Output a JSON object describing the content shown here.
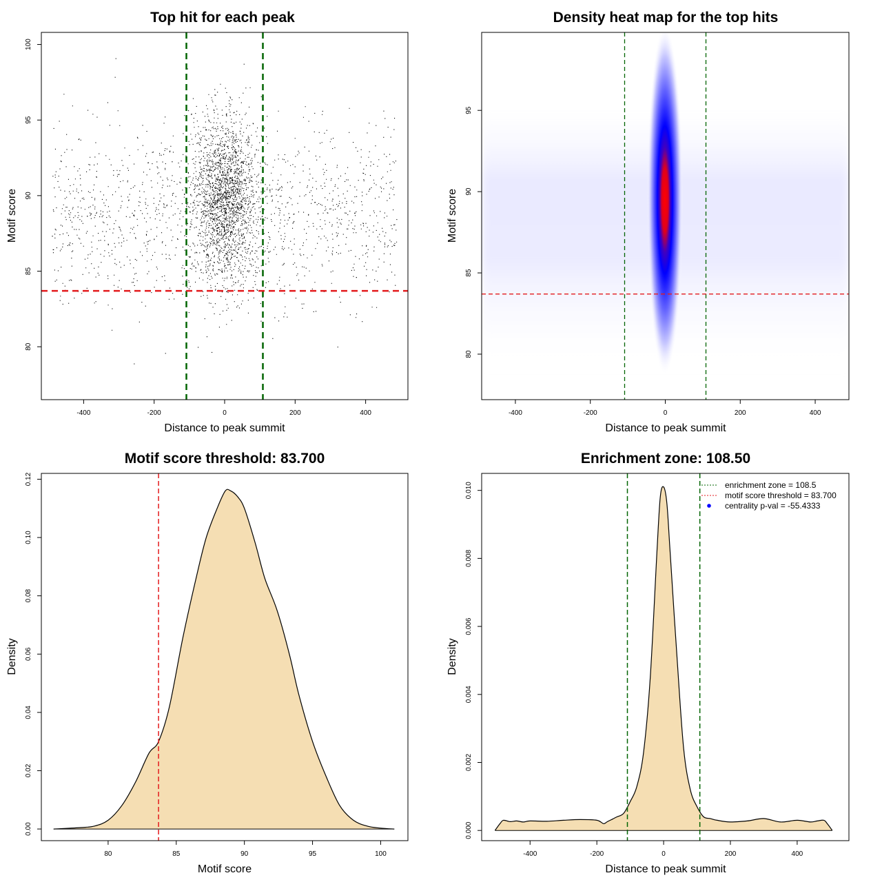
{
  "chart_data": [
    {
      "type": "scatter",
      "title": "Top hit for each peak",
      "xlabel": "Distance to peak summit",
      "ylabel": "Motif score",
      "xlim": [
        -520,
        520
      ],
      "ylim": [
        76.5,
        100.8
      ],
      "xticks": [
        -400,
        -200,
        0,
        200,
        400
      ],
      "yticks": [
        80,
        85,
        90,
        95,
        100
      ],
      "vlines": [
        -108.5,
        108.5
      ],
      "hline": 83.7,
      "colors": {
        "points": "#000000",
        "vline": "#006400",
        "hline": "#e31a1c"
      },
      "points_description_n": 16000
    },
    {
      "type": "heatmap",
      "title": "Density heat map for the top hits",
      "xlabel": "Distance to peak summit",
      "ylabel": "Motif score",
      "xlim": [
        -490,
        490
      ],
      "ylim": [
        77.2,
        99.8
      ],
      "xticks": [
        -400,
        -200,
        0,
        200,
        400
      ],
      "yticks": [
        80,
        85,
        90,
        95
      ],
      "vlines": [
        -108.5,
        108.5
      ],
      "hline": 83.7,
      "colors": {
        "low": "#ffffff",
        "mid": "#0000ff",
        "high": "#ff0000",
        "vline": "#006400",
        "hline": "#e31a1c"
      }
    },
    {
      "type": "area",
      "title": "Motif score threshold: 83.700",
      "xlabel": "Motif score",
      "ylabel": "Density",
      "xlim": [
        75.1,
        102.0
      ],
      "ylim": [
        -0.004,
        0.122
      ],
      "xticks": [
        80,
        85,
        90,
        95,
        100
      ],
      "yticks": [
        0.0,
        0.02,
        0.04,
        0.06,
        0.08,
        0.1,
        0.12
      ],
      "ytick_labels": [
        "0.00",
        "0.02",
        "0.04",
        "0.06",
        "0.08",
        "0.10",
        "0.12"
      ],
      "vline": 83.7,
      "x": [
        76.0,
        78.0,
        79.0,
        80.0,
        81.0,
        82.0,
        83.0,
        83.7,
        84.5,
        85.5,
        86.5,
        87.2,
        88.0,
        88.6,
        89.0,
        89.5,
        90.0,
        90.8,
        91.5,
        92.4,
        93.3,
        94.0,
        95.0,
        96.0,
        97.0,
        98.0,
        99.0,
        100.0,
        101.0
      ],
      "y": [
        0.0,
        0.0005,
        0.001,
        0.003,
        0.008,
        0.016,
        0.026,
        0.03,
        0.042,
        0.066,
        0.087,
        0.1,
        0.11,
        0.116,
        0.116,
        0.114,
        0.11,
        0.098,
        0.086,
        0.075,
        0.06,
        0.046,
        0.03,
        0.018,
        0.008,
        0.003,
        0.001,
        0.0003,
        0.0
      ],
      "colors": {
        "fill": "#f5deb3",
        "line": "#000000",
        "vline": "#e31a1c"
      }
    },
    {
      "type": "area",
      "title": "Enrichment zone: 108.50",
      "xlabel": "Distance to peak summit",
      "ylabel": "Density",
      "xlim": [
        -545,
        555
      ],
      "ylim": [
        -0.0003,
        0.0105
      ],
      "xticks": [
        -400,
        -200,
        0,
        200,
        400
      ],
      "yticks": [
        0.0,
        0.002,
        0.004,
        0.006,
        0.008,
        0.01
      ],
      "ytick_labels": [
        "0.000",
        "0.002",
        "0.004",
        "0.006",
        "0.008",
        "0.010"
      ],
      "vlines": [
        -108.5,
        108.5
      ],
      "x": [
        -505,
        -490,
        -480,
        -460,
        -440,
        -420,
        -400,
        -350,
        -300,
        -250,
        -200,
        -180,
        -170,
        -160,
        -140,
        -120,
        -100,
        -80,
        -60,
        -40,
        -20,
        -10,
        0,
        10,
        20,
        40,
        60,
        80,
        100,
        120,
        140,
        160,
        200,
        250,
        300,
        350,
        400,
        440,
        460,
        480,
        490,
        505
      ],
      "y": [
        0.0,
        0.0002,
        0.0003,
        0.00026,
        0.00028,
        0.00025,
        0.00028,
        0.00027,
        0.0003,
        0.00032,
        0.0003,
        0.0002,
        0.00025,
        0.0003,
        0.0004,
        0.0005,
        0.00085,
        0.0013,
        0.0023,
        0.0045,
        0.0082,
        0.0098,
        0.0101,
        0.0096,
        0.0081,
        0.0051,
        0.0024,
        0.0012,
        0.0007,
        0.0004,
        0.00035,
        0.0003,
        0.00025,
        0.00028,
        0.00035,
        0.00025,
        0.0003,
        0.00025,
        0.00028,
        0.0003,
        0.0002,
        0.0
      ],
      "legend": {
        "position": "top-right",
        "entries": [
          {
            "label": "enrichment zone = 108.5",
            "symbol": "dotted-line",
            "color": "#006400"
          },
          {
            "label": "motif score threshold = 83.700",
            "symbol": "dotted-line",
            "color": "#e31a1c"
          },
          {
            "label": "centrality p-val = -55.4333",
            "symbol": "point",
            "color": "#0000ff"
          }
        ]
      },
      "colors": {
        "fill": "#f5deb3",
        "line": "#000000",
        "vline": "#006400"
      }
    }
  ]
}
